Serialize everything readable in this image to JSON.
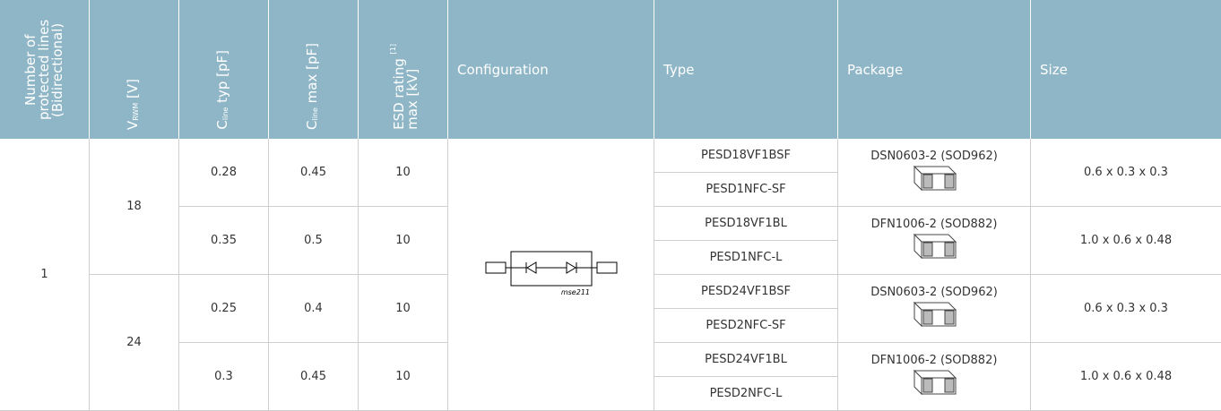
{
  "header": {
    "lines": "Number of protected lines (Bidirectional)",
    "vrwm": {
      "symbol": "V",
      "sub": "RWM",
      "unit": "[V]"
    },
    "c_typ": {
      "symbol": "C",
      "sub": "line",
      "unit": "typ [pF]"
    },
    "c_max": {
      "symbol": "C",
      "sub": "line",
      "unit": "max [pF]"
    },
    "esd": {
      "text": "ESD rating",
      "note": "[1]",
      "unit": "max [kV]"
    },
    "configuration": "Configuration",
    "type": "Type",
    "package": "Package",
    "size": "Size"
  },
  "lines": 1,
  "configuration_label": "mse211",
  "groups": [
    {
      "vrwm": 18,
      "variants": [
        {
          "c_typ": 0.28,
          "c_max": 0.45,
          "esd": 10,
          "types": [
            "PESD18VF1BSF",
            "PESD1NFC-SF"
          ],
          "package": "DSN0603-2 (SOD962)",
          "size": "0.6 x 0.3 x 0.3"
        },
        {
          "c_typ": 0.35,
          "c_max": 0.5,
          "esd": 10,
          "types": [
            "PESD18VF1BL",
            "PESD1NFC-L"
          ],
          "package": "DFN1006-2 (SOD882)",
          "size": "1.0 x 0.6 x 0.48"
        }
      ]
    },
    {
      "vrwm": 24,
      "variants": [
        {
          "c_typ": 0.25,
          "c_max": 0.4,
          "esd": 10,
          "types": [
            "PESD24VF1BSF",
            "PESD2NFC-SF"
          ],
          "package": "DSN0603-2 (SOD962)",
          "size": "0.6 x 0.3 x 0.3"
        },
        {
          "c_typ": 0.3,
          "c_max": 0.45,
          "esd": 10,
          "types": [
            "PESD24VF1BL",
            "PESD2NFC-L"
          ],
          "package": "DFN1006-2 (SOD882)",
          "size": "1.0 x 0.6 x 0.48"
        }
      ]
    }
  ]
}
